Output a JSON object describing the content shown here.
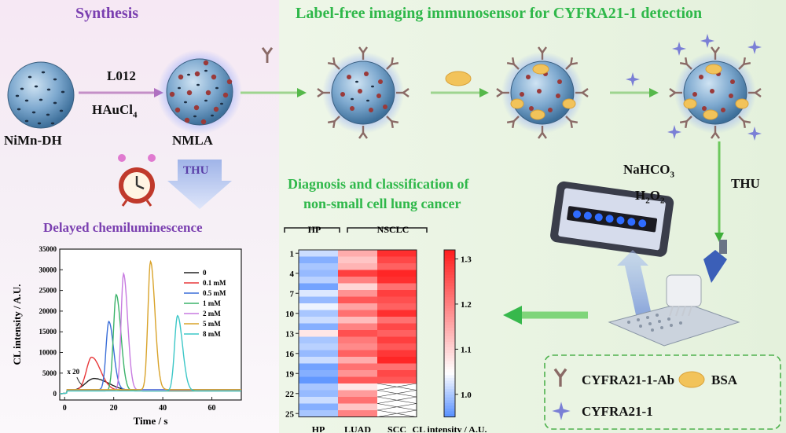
{
  "left": {
    "title": "Synthesis",
    "np1_label": "NiMn-DH",
    "arrow_top": "L012",
    "arrow_bottom_main": "HAuCl",
    "arrow_bottom_sub": "4",
    "np2_label": "NMLA",
    "thu": "THU",
    "delayed_title": "Delayed chemiluminescence"
  },
  "right": {
    "title": "Label-free imaging immunosensor for CYFRA21-1 detection",
    "diag_title_1": "Diagnosis and classification of",
    "diag_title_2": "non-small cell lung cancer",
    "nahco3_main": "NaHCO",
    "nahco3_sub": "3",
    "h2o2_a": "H",
    "h2o2_sub": "2",
    "h2o2_b": "O",
    "h2o2_sub2": "2",
    "thu": "THU"
  },
  "legend": {
    "ab": "CYFRA21-1-Ab",
    "bsa": "BSA",
    "antigen": "CYFRA21-1"
  },
  "colors": {
    "purple": "#7a3fb0",
    "green": "#2fb84a",
    "np_blue": "#6f9ec4",
    "gold_dot": "#9a3a3a",
    "antibody": "#8a6a66",
    "bsa": "#f2c35a",
    "antigen": "#7a7fd6"
  },
  "chart_data": [
    {
      "type": "line",
      "xlabel": "Time / s",
      "ylabel": "CL intensity / A.U.",
      "xlim": [
        -2,
        72
      ],
      "ylim": [
        -1500,
        35000
      ],
      "xticks": [
        "0",
        "20",
        "40",
        "60"
      ],
      "yticks": [
        "0",
        "5000",
        "10000",
        "15000",
        "20000",
        "25000",
        "30000",
        "35000"
      ],
      "annotation": "x 20",
      "series": [
        {
          "name": "0",
          "color": "#222222",
          "peak_x": 12,
          "peak_y": 3000,
          "width": 5
        },
        {
          "name": "0.1 mM",
          "color": "#e8393b",
          "peak_x": 11,
          "peak_y": 8000,
          "width": 3
        },
        {
          "name": "0.5 mM",
          "color": "#3b6fd8",
          "peak_x": 18,
          "peak_y": 16500,
          "width": 1.6
        },
        {
          "name": "1 mM",
          "color": "#3bb36a",
          "peak_x": 21,
          "peak_y": 23300,
          "width": 1.6
        },
        {
          "name": "2 mM",
          "color": "#c77ae0",
          "peak_x": 24,
          "peak_y": 28200,
          "width": 1.4
        },
        {
          "name": "5 mM",
          "color": "#d9a32a",
          "peak_x": 35,
          "peak_y": 31000,
          "width": 1.5
        },
        {
          "name": "8 mM",
          "color": "#3cc7c7",
          "peak_x": 46,
          "peak_y": 18200,
          "width": 1.7
        }
      ]
    },
    {
      "type": "heatmap",
      "group_labels": [
        "HP",
        "NSCLC"
      ],
      "columns": [
        "HP",
        "LUAD",
        "SCC"
      ],
      "row_ticks": [
        "1",
        "4",
        "7",
        "10",
        "13",
        "16",
        "19",
        "22",
        "25"
      ],
      "colorbar_label": "CL intensity  / A.U.",
      "colorbar_ticks": [
        "1.0",
        "1.1",
        "1.2",
        "1.3"
      ],
      "vmin": 0.95,
      "vmax": 1.32,
      "values": {
        "HP": [
          1.02,
          0.98,
          1.0,
          0.99,
          1.01,
          0.97,
          1.03,
          0.99,
          1.04,
          1.0,
          1.02,
          0.98,
          1.08,
          1.0,
          1.01,
          0.99,
          1.02,
          0.97,
          0.98,
          0.96,
          1.0,
          0.99,
          1.02,
          0.98,
          1.0
        ],
        "LUAD": [
          1.15,
          1.12,
          1.14,
          1.28,
          1.2,
          1.1,
          1.18,
          1.25,
          1.16,
          1.22,
          1.13,
          1.2,
          1.26,
          1.21,
          1.19,
          1.24,
          1.15,
          1.22,
          1.18,
          1.25,
          1.08,
          1.17,
          1.22,
          1.12,
          1.2
        ],
        "SCC": [
          1.3,
          1.27,
          1.24,
          1.31,
          1.3,
          1.22,
          1.28,
          1.26,
          1.24,
          1.3,
          1.22,
          1.27,
          1.24,
          1.28,
          1.25,
          1.29,
          1.31,
          1.22,
          1.27,
          1.25
        ]
      }
    }
  ]
}
